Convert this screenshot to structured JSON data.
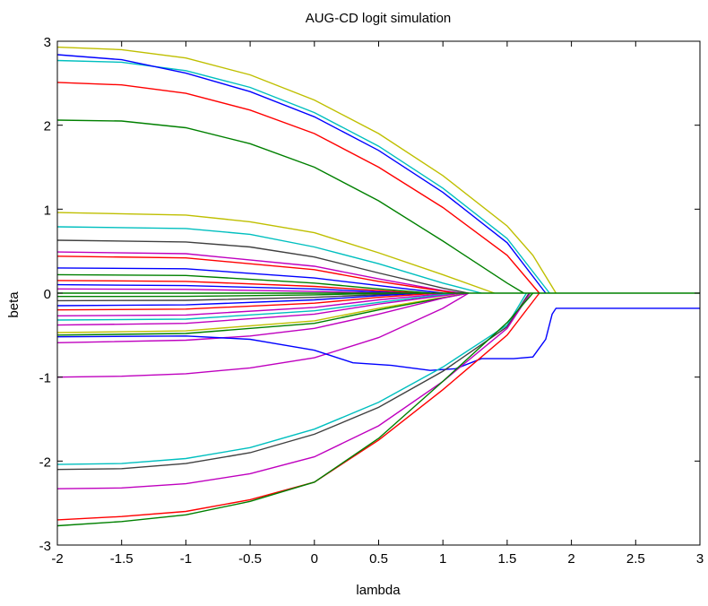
{
  "chart_data": {
    "type": "line",
    "title": "AUG-CD logit simulation",
    "xlabel": "lambda",
    "ylabel": "beta",
    "xlim": [
      -2,
      3
    ],
    "ylim": [
      -3,
      3
    ],
    "xticks": [
      -2,
      -1.5,
      -1,
      -0.5,
      0,
      0.5,
      1,
      1.5,
      2,
      2.5,
      3
    ],
    "yticks": [
      -3,
      -2,
      -1,
      0,
      1,
      2,
      3
    ],
    "xtick_labels": [
      "-2",
      "-1.5",
      "-1",
      "-0.5",
      "0",
      "0.5",
      "1",
      "1.5",
      "2",
      "2.5",
      "3"
    ],
    "ytick_labels": [
      "-3",
      "-2",
      "-1",
      "0",
      "1",
      "2",
      "3"
    ],
    "grid": false,
    "legend": "none",
    "colors": [
      "#0000ff",
      "#008000",
      "#ff0000",
      "#00bfbf",
      "#bf00bf",
      "#bfbf00",
      "#404040"
    ],
    "series": [
      {
        "color": "#bfbf00",
        "points": [
          [
            -2,
            2.93
          ],
          [
            -1.5,
            2.9
          ],
          [
            -1,
            2.8
          ],
          [
            -0.5,
            2.6
          ],
          [
            0,
            2.3
          ],
          [
            0.5,
            1.9
          ],
          [
            1,
            1.4
          ],
          [
            1.5,
            0.8
          ],
          [
            1.7,
            0.45
          ],
          [
            1.88,
            0
          ]
        ]
      },
      {
        "color": "#00bfbf",
        "points": [
          [
            -2,
            2.77
          ],
          [
            -1.5,
            2.75
          ],
          [
            -1,
            2.65
          ],
          [
            -0.5,
            2.45
          ],
          [
            0,
            2.15
          ],
          [
            0.5,
            1.75
          ],
          [
            1,
            1.25
          ],
          [
            1.5,
            0.65
          ],
          [
            1.83,
            0
          ]
        ]
      },
      {
        "color": "#0000ff",
        "points": [
          [
            -2,
            2.84
          ],
          [
            -1.5,
            2.78
          ],
          [
            -1,
            2.62
          ],
          [
            -0.5,
            2.4
          ],
          [
            0,
            2.1
          ],
          [
            0.5,
            1.7
          ],
          [
            1,
            1.2
          ],
          [
            1.5,
            0.6
          ],
          [
            1.8,
            0
          ]
        ]
      },
      {
        "color": "#ff0000",
        "points": [
          [
            -2,
            2.51
          ],
          [
            -1.5,
            2.48
          ],
          [
            -1,
            2.38
          ],
          [
            -0.5,
            2.18
          ],
          [
            0,
            1.9
          ],
          [
            0.5,
            1.5
          ],
          [
            1,
            1.02
          ],
          [
            1.5,
            0.45
          ],
          [
            1.75,
            0
          ]
        ]
      },
      {
        "color": "#008000",
        "points": [
          [
            -2,
            2.06
          ],
          [
            -1.5,
            2.05
          ],
          [
            -1,
            1.97
          ],
          [
            -0.5,
            1.78
          ],
          [
            0,
            1.5
          ],
          [
            0.5,
            1.1
          ],
          [
            1,
            0.62
          ],
          [
            1.5,
            0.12
          ],
          [
            1.63,
            0
          ]
        ]
      },
      {
        "color": "#bfbf00",
        "points": [
          [
            -2,
            0.96
          ],
          [
            -1,
            0.93
          ],
          [
            -0.5,
            0.85
          ],
          [
            0,
            0.72
          ],
          [
            0.5,
            0.48
          ],
          [
            1,
            0.22
          ],
          [
            1.4,
            0
          ]
        ]
      },
      {
        "color": "#00bfbf",
        "points": [
          [
            -2,
            0.79
          ],
          [
            -1,
            0.77
          ],
          [
            -0.5,
            0.7
          ],
          [
            0,
            0.55
          ],
          [
            0.5,
            0.35
          ],
          [
            1,
            0.12
          ],
          [
            1.3,
            0
          ]
        ]
      },
      {
        "color": "#404040",
        "points": [
          [
            -2,
            0.63
          ],
          [
            -1,
            0.61
          ],
          [
            -0.5,
            0.55
          ],
          [
            0,
            0.43
          ],
          [
            0.5,
            0.24
          ],
          [
            1,
            0.06
          ],
          [
            1.2,
            0
          ]
        ]
      },
      {
        "color": "#bf00bf",
        "points": [
          [
            -2,
            0.49
          ],
          [
            -1,
            0.47
          ],
          [
            0,
            0.32
          ],
          [
            0.5,
            0.17
          ],
          [
            1,
            0.03
          ],
          [
            1.15,
            0
          ]
        ]
      },
      {
        "color": "#ff0000",
        "points": [
          [
            -2,
            0.44
          ],
          [
            -1,
            0.42
          ],
          [
            0,
            0.28
          ],
          [
            0.5,
            0.14
          ],
          [
            1.1,
            0
          ]
        ]
      },
      {
        "color": "#0000ff",
        "points": [
          [
            -2,
            0.3
          ],
          [
            -1,
            0.29
          ],
          [
            0,
            0.18
          ],
          [
            0.5,
            0.09
          ],
          [
            1,
            0
          ]
        ]
      },
      {
        "color": "#008000",
        "points": [
          [
            -2,
            0.22
          ],
          [
            -1,
            0.21
          ],
          [
            0,
            0.12
          ],
          [
            0.5,
            0.05
          ],
          [
            0.9,
            0
          ]
        ]
      },
      {
        "color": "#ff0000",
        "points": [
          [
            -2,
            0.15
          ],
          [
            -1,
            0.14
          ],
          [
            0,
            0.08
          ],
          [
            0.8,
            0
          ]
        ]
      },
      {
        "color": "#0000ff",
        "points": [
          [
            -2,
            0.1
          ],
          [
            -1,
            0.09
          ],
          [
            0,
            0.05
          ],
          [
            0.7,
            0
          ]
        ]
      },
      {
        "color": "#bf00bf",
        "points": [
          [
            -2,
            0.05
          ],
          [
            -1,
            0.045
          ],
          [
            0,
            0.02
          ],
          [
            0.6,
            0
          ]
        ]
      },
      {
        "color": "#008000",
        "points": [
          [
            -2,
            -0.04
          ],
          [
            -1,
            -0.038
          ],
          [
            0,
            -0.02
          ],
          [
            0.6,
            0
          ]
        ]
      },
      {
        "color": "#404040",
        "points": [
          [
            -2,
            -0.09
          ],
          [
            -1,
            -0.085
          ],
          [
            0,
            -0.05
          ],
          [
            0.75,
            0
          ]
        ]
      },
      {
        "color": "#0000ff",
        "points": [
          [
            -2,
            -0.15
          ],
          [
            -1,
            -0.14
          ],
          [
            0,
            -0.08
          ],
          [
            0.5,
            -0.03
          ],
          [
            0.85,
            0
          ]
        ]
      },
      {
        "color": "#ff0000",
        "points": [
          [
            -2,
            -0.2
          ],
          [
            -1,
            -0.19
          ],
          [
            0,
            -0.12
          ],
          [
            0.5,
            -0.05
          ],
          [
            0.95,
            0
          ]
        ]
      },
      {
        "color": "#bf00bf",
        "points": [
          [
            -2,
            -0.27
          ],
          [
            -1,
            -0.26
          ],
          [
            0,
            -0.17
          ],
          [
            0.5,
            -0.08
          ],
          [
            1.05,
            0
          ]
        ]
      },
      {
        "color": "#00bfbf",
        "points": [
          [
            -2,
            -0.32
          ],
          [
            -1,
            -0.31
          ],
          [
            0,
            -0.21
          ],
          [
            0.5,
            -0.11
          ],
          [
            1.1,
            0
          ]
        ]
      },
      {
        "color": "#bf00bf",
        "points": [
          [
            -2,
            -0.38
          ],
          [
            -1,
            -0.36
          ],
          [
            0,
            -0.25
          ],
          [
            0.5,
            -0.13
          ],
          [
            1.15,
            0
          ]
        ]
      },
      {
        "color": "#bfbf00",
        "points": [
          [
            -2,
            -0.47
          ],
          [
            -1,
            -0.45
          ],
          [
            0,
            -0.33
          ],
          [
            0.5,
            -0.18
          ],
          [
            1.2,
            0
          ]
        ]
      },
      {
        "color": "#008000",
        "points": [
          [
            -2,
            -0.5
          ],
          [
            -1,
            -0.48
          ],
          [
            0,
            -0.36
          ],
          [
            0.5,
            -0.2
          ],
          [
            1.2,
            0
          ]
        ]
      },
      {
        "color": "#bf00bf",
        "points": [
          [
            -2,
            -0.59
          ],
          [
            -1,
            -0.56
          ],
          [
            -0.5,
            -0.51
          ],
          [
            0,
            -0.42
          ],
          [
            0.5,
            -0.25
          ],
          [
            1,
            -0.06
          ],
          [
            1.2,
            0
          ]
        ]
      },
      {
        "color": "#bf00bf",
        "points": [
          [
            -2,
            -1.0
          ],
          [
            -1.5,
            -0.99
          ],
          [
            -1,
            -0.96
          ],
          [
            -0.5,
            -0.89
          ],
          [
            0,
            -0.77
          ],
          [
            0.5,
            -0.53
          ],
          [
            1,
            -0.18
          ],
          [
            1.2,
            0
          ]
        ]
      },
      {
        "color": "#0000ff",
        "points": [
          [
            -2,
            -0.52
          ],
          [
            -1,
            -0.51
          ],
          [
            -0.5,
            -0.55
          ],
          [
            0,
            -0.68
          ],
          [
            0.3,
            -0.83
          ],
          [
            0.6,
            -0.86
          ],
          [
            0.9,
            -0.92
          ],
          [
            1.1,
            -0.9
          ],
          [
            1.3,
            -0.78
          ],
          [
            1.55,
            -0.78
          ],
          [
            1.7,
            -0.76
          ],
          [
            1.8,
            -0.55
          ],
          [
            1.85,
            -0.25
          ],
          [
            1.88,
            -0.18
          ],
          [
            2.5,
            -0.18
          ],
          [
            3,
            -0.18
          ]
        ]
      },
      {
        "color": "#00bfbf",
        "points": [
          [
            -2,
            -2.04
          ],
          [
            -1.5,
            -2.03
          ],
          [
            -1,
            -1.97
          ],
          [
            -0.5,
            -1.84
          ],
          [
            0,
            -1.62
          ],
          [
            0.5,
            -1.3
          ],
          [
            1,
            -0.88
          ],
          [
            1.5,
            -0.38
          ],
          [
            1.65,
            0
          ]
        ]
      },
      {
        "color": "#404040",
        "points": [
          [
            -2,
            -2.1
          ],
          [
            -1.5,
            -2.09
          ],
          [
            -1,
            -2.03
          ],
          [
            -0.5,
            -1.9
          ],
          [
            0,
            -1.68
          ],
          [
            0.5,
            -1.36
          ],
          [
            1,
            -0.93
          ],
          [
            1.5,
            -0.4
          ],
          [
            1.67,
            0
          ]
        ]
      },
      {
        "color": "#bf00bf",
        "points": [
          [
            -2,
            -2.33
          ],
          [
            -1.5,
            -2.32
          ],
          [
            -1,
            -2.27
          ],
          [
            -0.5,
            -2.15
          ],
          [
            0,
            -1.95
          ],
          [
            0.5,
            -1.58
          ],
          [
            1,
            -1.05
          ],
          [
            1.5,
            -0.42
          ],
          [
            1.68,
            0
          ]
        ]
      },
      {
        "color": "#ff0000",
        "points": [
          [
            -2,
            -2.7
          ],
          [
            -1.5,
            -2.66
          ],
          [
            -1,
            -2.6
          ],
          [
            -0.5,
            -2.46
          ],
          [
            0,
            -2.25
          ],
          [
            0.5,
            -1.75
          ],
          [
            1,
            -1.15
          ],
          [
            1.5,
            -0.5
          ],
          [
            1.75,
            0
          ]
        ]
      },
      {
        "color": "#008000",
        "points": [
          [
            -2,
            -2.77
          ],
          [
            -1.5,
            -2.72
          ],
          [
            -1,
            -2.64
          ],
          [
            -0.5,
            -2.48
          ],
          [
            0,
            -2.25
          ],
          [
            0.5,
            -1.73
          ],
          [
            1,
            -1.05
          ],
          [
            1.5,
            -0.35
          ],
          [
            1.7,
            0
          ]
        ]
      },
      {
        "color": "#008000",
        "points": [
          [
            -2,
            0
          ],
          [
            3,
            0
          ]
        ]
      }
    ]
  }
}
